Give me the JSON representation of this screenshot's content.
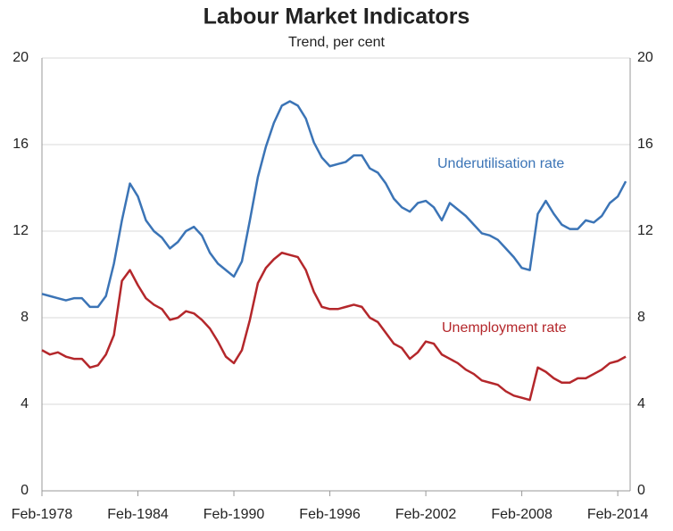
{
  "chart_data": {
    "type": "line",
    "title": "Labour Market Indicators",
    "subtitle": "Trend, per cent",
    "categories": [
      "Feb-1978",
      null,
      null,
      null,
      null,
      null,
      null,
      null,
      null,
      null,
      null,
      null,
      "Feb-1984",
      null,
      null,
      null,
      null,
      null,
      null,
      null,
      null,
      null,
      null,
      null,
      "Feb-1990",
      null,
      null,
      null,
      null,
      null,
      null,
      null,
      null,
      null,
      null,
      null,
      "Feb-1996",
      null,
      null,
      null,
      null,
      null,
      null,
      null,
      null,
      null,
      null,
      null,
      "Feb-2002",
      null,
      null,
      null,
      null,
      null,
      null,
      null,
      null,
      null,
      null,
      null,
      "Feb-2008",
      null,
      null,
      null,
      null,
      null,
      null,
      null,
      null,
      null,
      null,
      null,
      "Feb-2014",
      null
    ],
    "series": [
      {
        "name": "Underutilisation rate",
        "color": "#3b74b6",
        "values": [
          9.1,
          9.0,
          8.9,
          8.8,
          8.9,
          8.9,
          8.5,
          8.5,
          9.0,
          10.5,
          12.5,
          14.2,
          13.6,
          12.5,
          12.0,
          11.7,
          11.2,
          11.5,
          12.0,
          12.2,
          11.8,
          11.0,
          10.5,
          10.2,
          9.9,
          10.6,
          12.5,
          14.5,
          15.9,
          17.0,
          17.8,
          18.0,
          17.8,
          17.2,
          16.1,
          15.4,
          15.0,
          15.1,
          15.2,
          15.5,
          15.5,
          14.9,
          14.7,
          14.2,
          13.5,
          13.1,
          12.9,
          13.3,
          13.4,
          13.1,
          12.5,
          13.3,
          13.0,
          12.7,
          12.3,
          11.9,
          11.8,
          11.6,
          11.2,
          10.8,
          10.3,
          10.2,
          12.8,
          13.4,
          12.8,
          12.3,
          12.1,
          12.1,
          12.5,
          12.4,
          12.7,
          13.3,
          13.6,
          14.3
        ]
      },
      {
        "name": "Unemployment rate",
        "color": "#b4272b",
        "values": [
          6.5,
          6.3,
          6.4,
          6.2,
          6.1,
          6.1,
          5.7,
          5.8,
          6.3,
          7.2,
          9.7,
          10.2,
          9.5,
          8.9,
          8.6,
          8.4,
          7.9,
          8.0,
          8.3,
          8.2,
          7.9,
          7.5,
          6.9,
          6.2,
          5.9,
          6.5,
          7.9,
          9.6,
          10.3,
          10.7,
          11.0,
          10.9,
          10.8,
          10.2,
          9.2,
          8.5,
          8.4,
          8.4,
          8.5,
          8.6,
          8.5,
          8.0,
          7.8,
          7.3,
          6.8,
          6.6,
          6.1,
          6.4,
          6.9,
          6.8,
          6.3,
          6.1,
          5.9,
          5.6,
          5.4,
          5.1,
          5.0,
          4.9,
          4.6,
          4.4,
          4.3,
          4.2,
          5.7,
          5.5,
          5.2,
          5.0,
          5.0,
          5.2,
          5.2,
          5.4,
          5.6,
          5.9,
          6.0,
          6.2
        ]
      }
    ],
    "ylim": [
      0,
      20
    ],
    "yticks": [
      0,
      4,
      8,
      12,
      16,
      20
    ],
    "y2lim": [
      0,
      20
    ],
    "y2ticks": [
      0,
      4,
      8,
      12,
      16,
      20
    ],
    "grid": true
  }
}
